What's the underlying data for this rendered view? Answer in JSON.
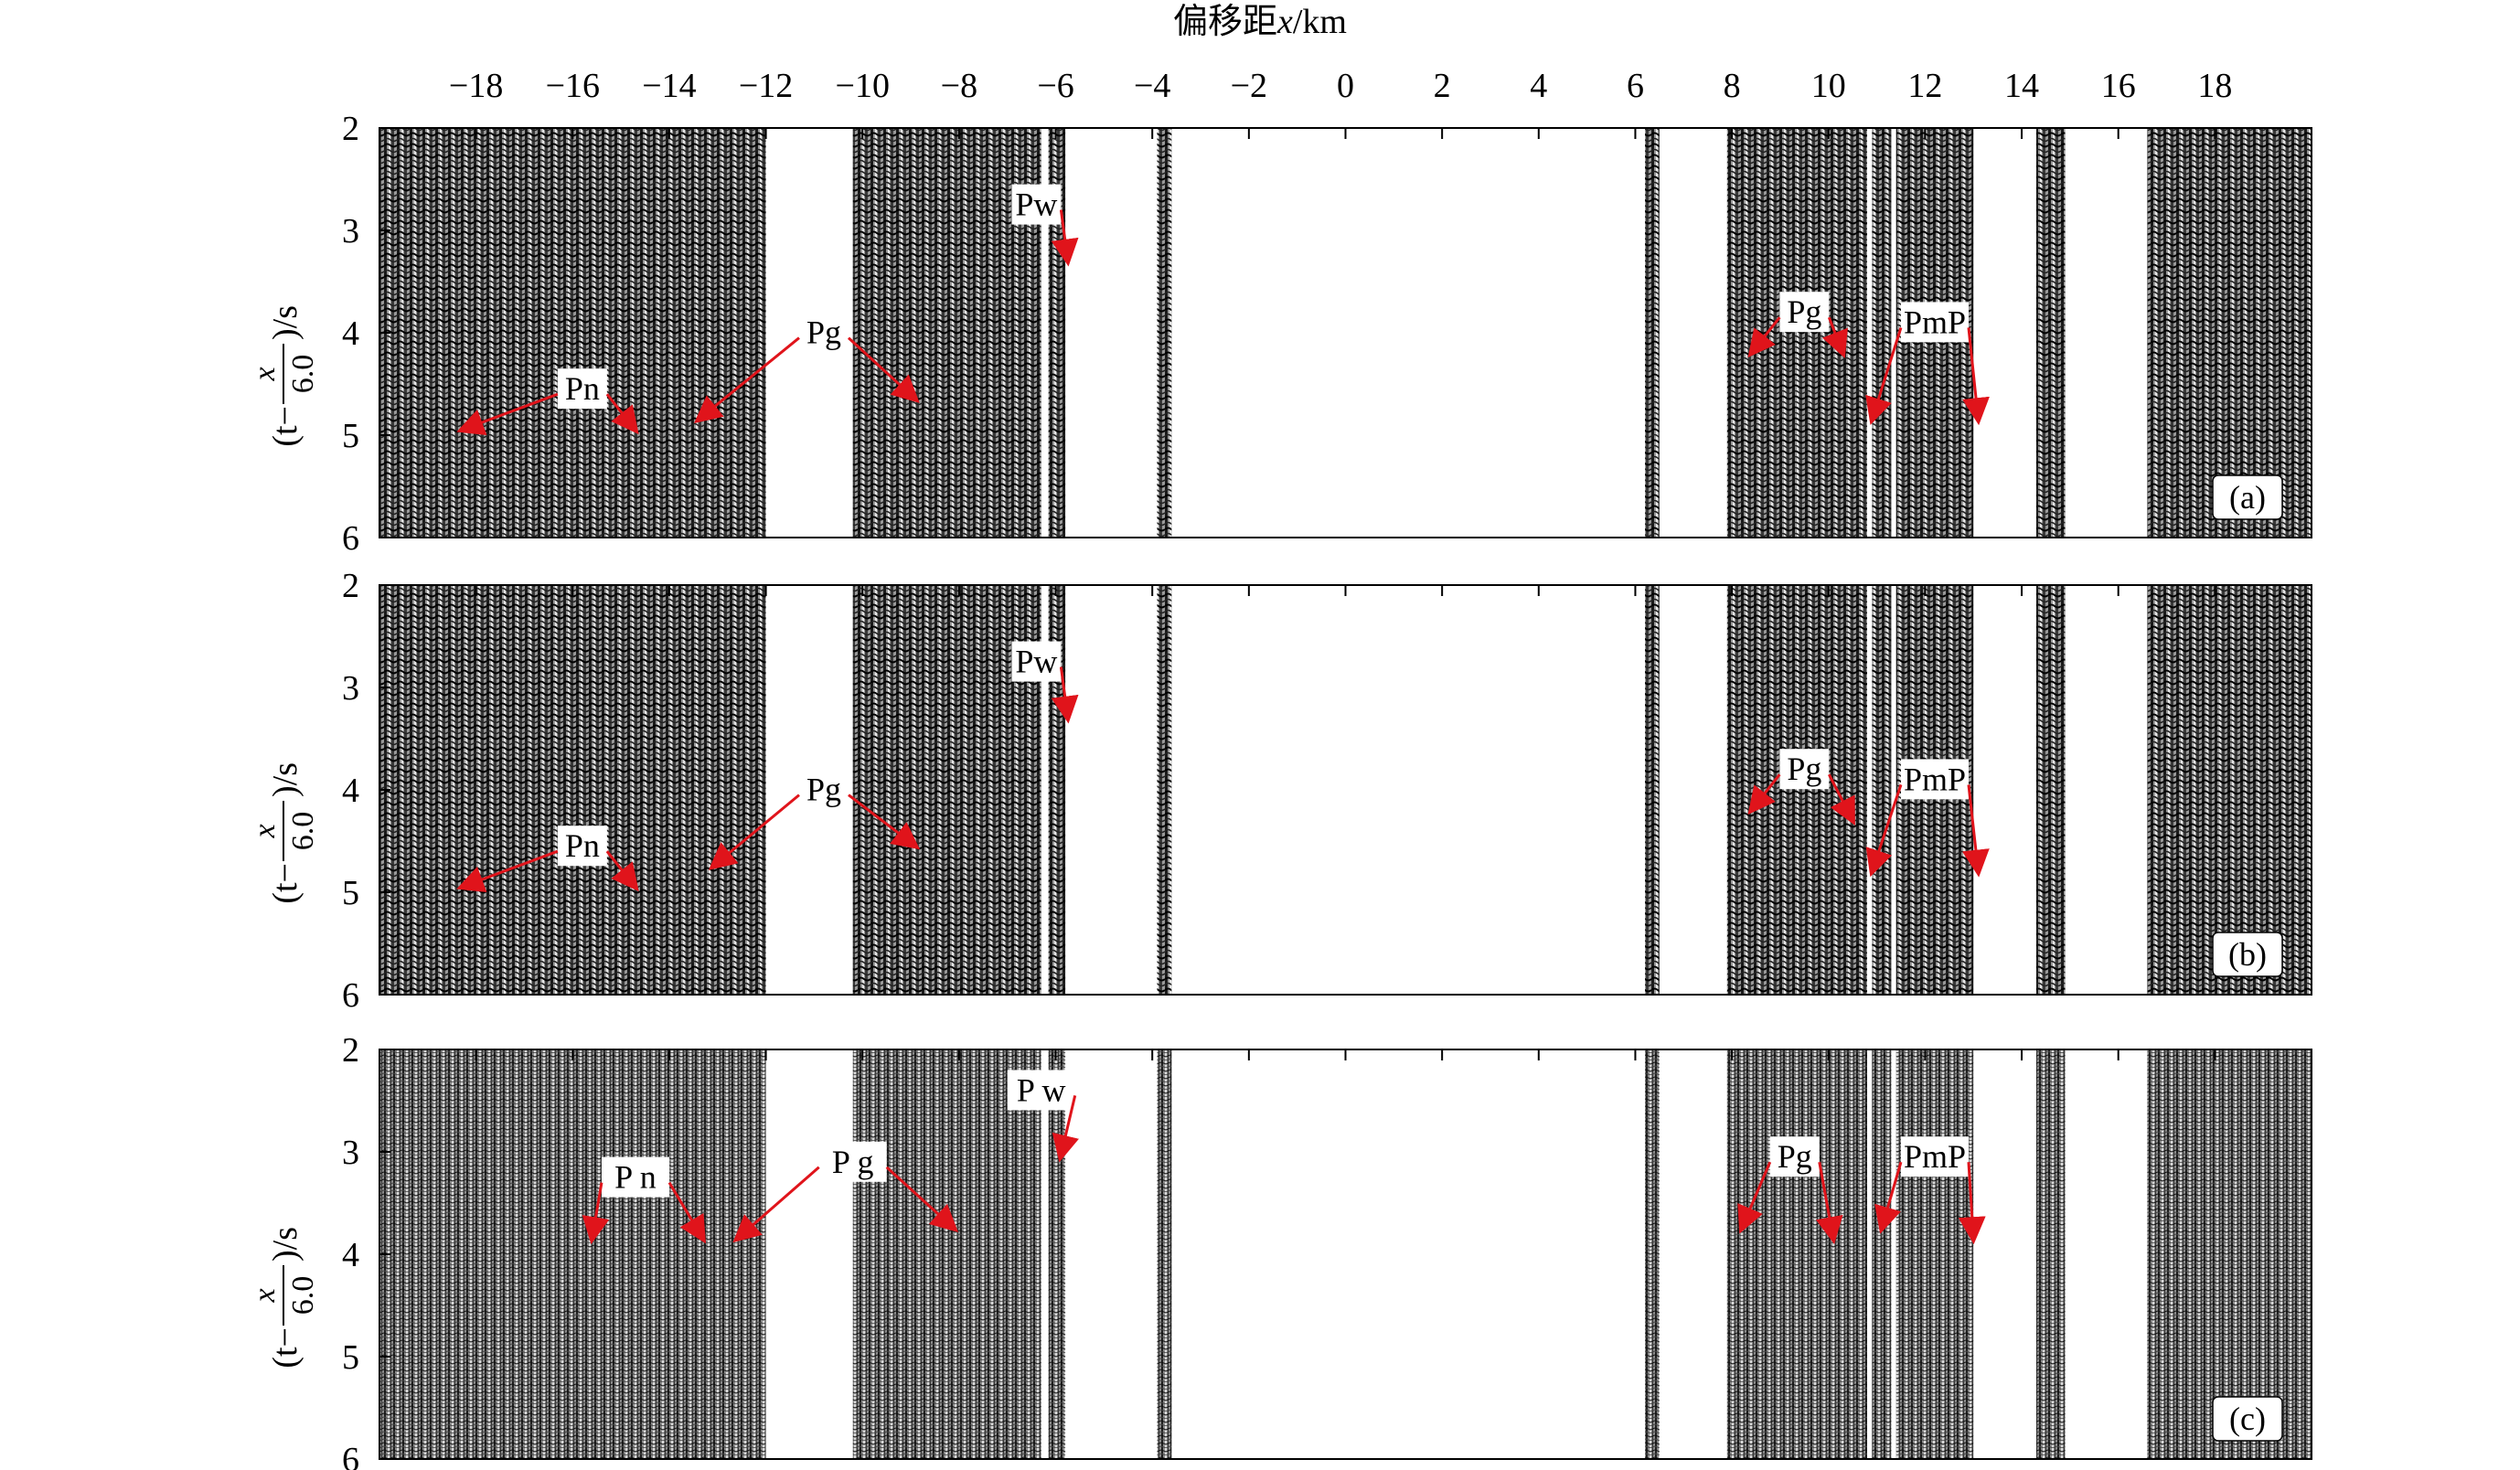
{
  "figure": {
    "x_axis": {
      "label_prefix": "偏移距",
      "label_var": "x",
      "label_unit": "/km",
      "range": [
        -20,
        20
      ],
      "ticks": [
        -18,
        -16,
        -14,
        -12,
        -10,
        -8,
        -6,
        -4,
        -2,
        0,
        2,
        4,
        6,
        8,
        10,
        12,
        14,
        16,
        18
      ],
      "tick_labels": [
        "−18",
        "−16",
        "−14",
        "−12",
        "−10",
        "−8",
        "−6",
        "−4",
        "−2",
        "0",
        "2",
        "4",
        "6",
        "8",
        "10",
        "12",
        "14",
        "16",
        "18"
      ]
    },
    "y_axis": {
      "label_open": "(t−",
      "label_num": "x",
      "label_den": "6.0",
      "label_close": ")/s",
      "range": [
        2,
        6
      ],
      "ticks": [
        2,
        3,
        4,
        5,
        6
      ],
      "tick_labels": [
        "2",
        "3",
        "4",
        "5",
        "6"
      ]
    },
    "trace_bands_km": [
      [
        -20,
        -12
      ],
      [
        -10.2,
        -6.3
      ],
      [
        -6.15,
        -5.8
      ],
      [
        -3.9,
        -3.6
      ],
      [
        6.2,
        6.5
      ],
      [
        7.9,
        10.8
      ],
      [
        10.9,
        11.3
      ],
      [
        11.4,
        13.0
      ],
      [
        14.3,
        14.9
      ],
      [
        16.6,
        20
      ]
    ],
    "panels": [
      {
        "tag": "(a)",
        "labels": [
          {
            "text": "Pn",
            "x": -15.8,
            "t": 4.6,
            "arrows": [
              [
                -18.3,
                4.95
              ],
              [
                -14.7,
                4.95
              ]
            ]
          },
          {
            "text": "Pg",
            "x": -10.8,
            "t": 4.05,
            "arrows": [
              [
                -13.4,
                4.85
              ],
              [
                -8.9,
                4.65
              ]
            ]
          },
          {
            "text": "Pw",
            "x": -6.4,
            "t": 2.8,
            "arrows": [
              [
                -5.75,
                3.3
              ]
            ]
          },
          {
            "text": "Pg",
            "x": 9.5,
            "t": 3.85,
            "arrows": [
              [
                8.4,
                4.2
              ],
              [
                10.3,
                4.2
              ]
            ]
          },
          {
            "text": "PmP",
            "x": 12.2,
            "t": 3.95,
            "arrows": [
              [
                10.9,
                4.85
              ],
              [
                13.1,
                4.85
              ]
            ]
          }
        ]
      },
      {
        "tag": "(b)",
        "labels": [
          {
            "text": "Pn",
            "x": -15.8,
            "t": 4.6,
            "arrows": [
              [
                -18.3,
                4.95
              ],
              [
                -14.7,
                4.95
              ]
            ]
          },
          {
            "text": "Pg",
            "x": -10.8,
            "t": 4.05,
            "arrows": [
              [
                -13.1,
                4.75
              ],
              [
                -8.9,
                4.55
              ]
            ]
          },
          {
            "text": "Pw",
            "x": -6.4,
            "t": 2.8,
            "arrows": [
              [
                -5.75,
                3.3
              ]
            ]
          },
          {
            "text": "Pg",
            "x": 9.5,
            "t": 3.85,
            "arrows": [
              [
                8.4,
                4.2
              ],
              [
                10.5,
                4.3
              ]
            ]
          },
          {
            "text": "PmP",
            "x": 12.2,
            "t": 3.95,
            "arrows": [
              [
                10.9,
                4.8
              ],
              [
                13.1,
                4.8
              ]
            ]
          }
        ]
      },
      {
        "tag": "(c)",
        "labels": [
          {
            "text": "P n",
            "x": -14.7,
            "t": 3.3,
            "arrows": [
              [
                -15.6,
                3.85
              ],
              [
                -13.3,
                3.85
              ]
            ]
          },
          {
            "text": "P g",
            "x": -10.2,
            "t": 3.15,
            "arrows": [
              [
                -12.6,
                3.85
              ],
              [
                -8.1,
                3.75
              ]
            ]
          },
          {
            "text": "P w",
            "x": -6.3,
            "t": 2.45,
            "arrows": [
              [
                -5.9,
                3.05
              ]
            ]
          },
          {
            "text": "Pg",
            "x": 9.3,
            "t": 3.1,
            "arrows": [
              [
                8.2,
                3.75
              ],
              [
                10.1,
                3.85
              ]
            ]
          },
          {
            "text": "PmP",
            "x": 12.2,
            "t": 3.1,
            "arrows": [
              [
                11.1,
                3.75
              ],
              [
                13.0,
                3.85
              ]
            ]
          }
        ]
      }
    ]
  }
}
